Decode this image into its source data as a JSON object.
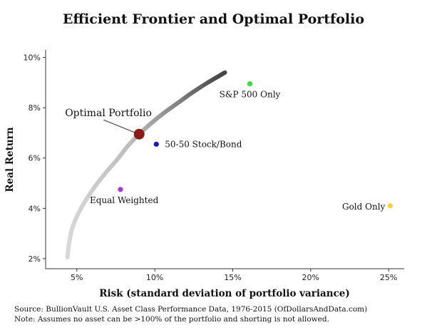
{
  "chart_data": {
    "type": "scatter",
    "title": "Efficient Frontier and Optimal Portfolio",
    "xlabel": "Risk (standard deviation of portfolio variance)",
    "ylabel": "Real Return",
    "xlim": [
      3,
      26
    ],
    "ylim": [
      1.6,
      10.3
    ],
    "x_ticks": [
      {
        "value": 5,
        "label": "5%"
      },
      {
        "value": 10,
        "label": "10%"
      },
      {
        "value": 15,
        "label": "15%"
      },
      {
        "value": 20,
        "label": "20%"
      },
      {
        "value": 25,
        "label": "25%"
      }
    ],
    "y_ticks": [
      {
        "value": 2,
        "label": "2%"
      },
      {
        "value": 4,
        "label": "4%"
      },
      {
        "value": 6,
        "label": "6%"
      },
      {
        "value": 8,
        "label": "8%"
      },
      {
        "value": 10,
        "label": "10%"
      }
    ],
    "frontier": {
      "x": [
        4.4,
        4.5,
        4.7,
        5.1,
        5.6,
        6.2,
        6.9,
        7.6,
        8.3,
        9.0,
        9.8,
        10.6,
        11.5,
        12.4,
        13.4,
        14.5
      ],
      "y": [
        2.05,
        2.6,
        3.2,
        3.8,
        4.35,
        4.9,
        5.45,
        5.95,
        6.5,
        6.95,
        7.4,
        7.8,
        8.2,
        8.6,
        9.0,
        9.4
      ]
    },
    "points": [
      {
        "label": "Optimal Portfolio",
        "x": 9.0,
        "y": 6.95,
        "color": "#8b1a1a"
      },
      {
        "label": "50-50 Stock/Bond",
        "x": 10.1,
        "y": 6.55,
        "color": "#1a1ab4"
      },
      {
        "label": "Equal Weighted",
        "x": 7.8,
        "y": 4.75,
        "color": "#a63ccf"
      },
      {
        "label": "S&P 500 Only",
        "x": 16.1,
        "y": 8.95,
        "color": "#3ddc3d"
      },
      {
        "label": "Gold Only",
        "x": 25.1,
        "y": 4.1,
        "color": "#f2d43a"
      }
    ],
    "grid": false,
    "legend": "none"
  },
  "notes": {
    "source": "Source:  BullionVault U.S. Asset Class Performance Data, 1976-2015 (OfDollarsAndData.com)",
    "note": "Note:  Assumes no asset can be >100% of the portfolio and shorting is not allowed."
  }
}
